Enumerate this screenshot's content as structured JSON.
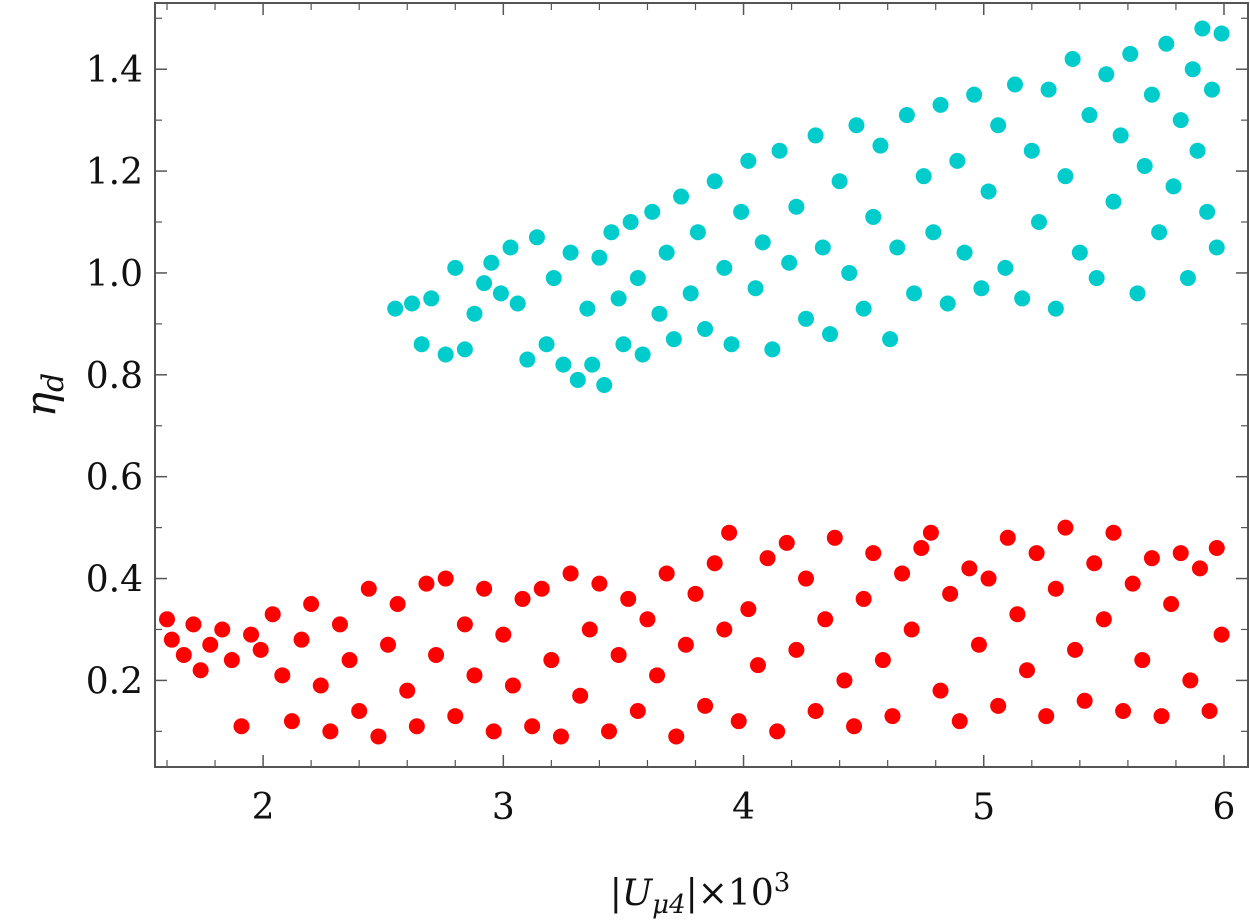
{
  "chart_data": {
    "type": "scatter",
    "title": "",
    "xlabel_parts": {
      "open": "|U",
      "sub": "μ4",
      "mid": "|×10",
      "sup": "3"
    },
    "ylabel_parts": {
      "main": "η",
      "sub": "d"
    },
    "xlim": [
      1.55,
      6.1
    ],
    "ylim": [
      0.03,
      1.53
    ],
    "xticks": [
      2,
      3,
      4,
      5,
      6
    ],
    "yticks": [
      0.2,
      0.4,
      0.6,
      0.8,
      1.0,
      1.2,
      1.4
    ],
    "xtick_labels": [
      "2",
      "3",
      "4",
      "5",
      "6"
    ],
    "ytick_labels": [
      "0.2",
      "0.4",
      "0.6",
      "0.8",
      "1.0",
      "1.2",
      "1.4"
    ],
    "grid": false,
    "colors": {
      "cyan": "#00cccc",
      "red": "#ff0000"
    },
    "series": [
      {
        "color": "#00cccc",
        "points": [
          [
            2.55,
            0.93
          ],
          [
            2.62,
            0.94
          ],
          [
            2.66,
            0.86
          ],
          [
            2.7,
            0.95
          ],
          [
            2.76,
            0.84
          ],
          [
            2.8,
            1.01
          ],
          [
            2.84,
            0.85
          ],
          [
            2.88,
            0.92
          ],
          [
            2.92,
            0.98
          ],
          [
            2.95,
            1.02
          ],
          [
            2.99,
            0.96
          ],
          [
            3.03,
            1.05
          ],
          [
            3.06,
            0.94
          ],
          [
            3.1,
            0.83
          ],
          [
            3.14,
            1.07
          ],
          [
            3.18,
            0.86
          ],
          [
            3.21,
            0.99
          ],
          [
            3.25,
            0.82
          ],
          [
            3.28,
            1.04
          ],
          [
            3.31,
            0.79
          ],
          [
            3.35,
            0.93
          ],
          [
            3.37,
            0.82
          ],
          [
            3.4,
            1.03
          ],
          [
            3.42,
            0.78
          ],
          [
            3.45,
            1.08
          ],
          [
            3.48,
            0.95
          ],
          [
            3.5,
            0.86
          ],
          [
            3.53,
            1.1
          ],
          [
            3.56,
            0.99
          ],
          [
            3.58,
            0.84
          ],
          [
            3.62,
            1.12
          ],
          [
            3.65,
            0.92
          ],
          [
            3.68,
            1.04
          ],
          [
            3.71,
            0.87
          ],
          [
            3.74,
            1.15
          ],
          [
            3.78,
            0.96
          ],
          [
            3.81,
            1.08
          ],
          [
            3.84,
            0.89
          ],
          [
            3.88,
            1.18
          ],
          [
            3.92,
            1.01
          ],
          [
            3.95,
            0.86
          ],
          [
            3.99,
            1.12
          ],
          [
            4.02,
            1.22
          ],
          [
            4.05,
            0.97
          ],
          [
            4.08,
            1.06
          ],
          [
            4.12,
            0.85
          ],
          [
            4.15,
            1.24
          ],
          [
            4.19,
            1.02
          ],
          [
            4.22,
            1.13
          ],
          [
            4.26,
            0.91
          ],
          [
            4.3,
            1.27
          ],
          [
            4.33,
            1.05
          ],
          [
            4.36,
            0.88
          ],
          [
            4.4,
            1.18
          ],
          [
            4.44,
            1.0
          ],
          [
            4.47,
            1.29
          ],
          [
            4.5,
            0.93
          ],
          [
            4.54,
            1.11
          ],
          [
            4.57,
            1.25
          ],
          [
            4.61,
            0.87
          ],
          [
            4.64,
            1.05
          ],
          [
            4.68,
            1.31
          ],
          [
            4.71,
            0.96
          ],
          [
            4.75,
            1.19
          ],
          [
            4.79,
            1.08
          ],
          [
            4.82,
            1.33
          ],
          [
            4.85,
            0.94
          ],
          [
            4.89,
            1.22
          ],
          [
            4.92,
            1.04
          ],
          [
            4.96,
            1.35
          ],
          [
            4.99,
            0.97
          ],
          [
            5.02,
            1.16
          ],
          [
            5.06,
            1.29
          ],
          [
            5.09,
            1.01
          ],
          [
            5.13,
            1.37
          ],
          [
            5.16,
            0.95
          ],
          [
            5.2,
            1.24
          ],
          [
            5.23,
            1.1
          ],
          [
            5.27,
            1.36
          ],
          [
            5.3,
            0.93
          ],
          [
            5.34,
            1.19
          ],
          [
            5.37,
            1.42
          ],
          [
            5.4,
            1.04
          ],
          [
            5.44,
            1.31
          ],
          [
            5.47,
            0.99
          ],
          [
            5.51,
            1.39
          ],
          [
            5.54,
            1.14
          ],
          [
            5.57,
            1.27
          ],
          [
            5.61,
            1.43
          ],
          [
            5.64,
            0.96
          ],
          [
            5.67,
            1.21
          ],
          [
            5.7,
            1.35
          ],
          [
            5.73,
            1.08
          ],
          [
            5.76,
            1.45
          ],
          [
            5.79,
            1.17
          ],
          [
            5.82,
            1.3
          ],
          [
            5.85,
            0.99
          ],
          [
            5.87,
            1.4
          ],
          [
            5.89,
            1.24
          ],
          [
            5.91,
            1.48
          ],
          [
            5.93,
            1.12
          ],
          [
            5.95,
            1.36
          ],
          [
            5.97,
            1.05
          ],
          [
            5.99,
            1.47
          ]
        ]
      },
      {
        "color": "#ff0000",
        "points": [
          [
            1.6,
            0.32
          ],
          [
            1.62,
            0.28
          ],
          [
            1.67,
            0.25
          ],
          [
            1.71,
            0.31
          ],
          [
            1.74,
            0.22
          ],
          [
            1.78,
            0.27
          ],
          [
            1.83,
            0.3
          ],
          [
            1.87,
            0.24
          ],
          [
            1.91,
            0.11
          ],
          [
            1.95,
            0.29
          ],
          [
            1.99,
            0.26
          ],
          [
            2.04,
            0.33
          ],
          [
            2.08,
            0.21
          ],
          [
            2.12,
            0.12
          ],
          [
            2.16,
            0.28
          ],
          [
            2.2,
            0.35
          ],
          [
            2.24,
            0.19
          ],
          [
            2.28,
            0.1
          ],
          [
            2.32,
            0.31
          ],
          [
            2.36,
            0.24
          ],
          [
            2.4,
            0.14
          ],
          [
            2.44,
            0.38
          ],
          [
            2.48,
            0.09
          ],
          [
            2.52,
            0.27
          ],
          [
            2.56,
            0.35
          ],
          [
            2.6,
            0.18
          ],
          [
            2.64,
            0.11
          ],
          [
            2.68,
            0.39
          ],
          [
            2.72,
            0.25
          ],
          [
            2.76,
            0.4
          ],
          [
            2.8,
            0.13
          ],
          [
            2.84,
            0.31
          ],
          [
            2.88,
            0.21
          ],
          [
            2.92,
            0.38
          ],
          [
            2.96,
            0.1
          ],
          [
            3.0,
            0.29
          ],
          [
            3.04,
            0.19
          ],
          [
            3.08,
            0.36
          ],
          [
            3.12,
            0.11
          ],
          [
            3.16,
            0.38
          ],
          [
            3.2,
            0.24
          ],
          [
            3.24,
            0.09
          ],
          [
            3.28,
            0.41
          ],
          [
            3.32,
            0.17
          ],
          [
            3.36,
            0.3
          ],
          [
            3.4,
            0.39
          ],
          [
            3.44,
            0.1
          ],
          [
            3.48,
            0.25
          ],
          [
            3.52,
            0.36
          ],
          [
            3.56,
            0.14
          ],
          [
            3.6,
            0.32
          ],
          [
            3.64,
            0.21
          ],
          [
            3.68,
            0.41
          ],
          [
            3.72,
            0.09
          ],
          [
            3.76,
            0.27
          ],
          [
            3.8,
            0.37
          ],
          [
            3.84,
            0.15
          ],
          [
            3.88,
            0.43
          ],
          [
            3.92,
            0.3
          ],
          [
            3.94,
            0.49
          ],
          [
            3.98,
            0.12
          ],
          [
            4.02,
            0.34
          ],
          [
            4.06,
            0.23
          ],
          [
            4.1,
            0.44
          ],
          [
            4.14,
            0.1
          ],
          [
            4.18,
            0.47
          ],
          [
            4.22,
            0.26
          ],
          [
            4.26,
            0.4
          ],
          [
            4.3,
            0.14
          ],
          [
            4.34,
            0.32
          ],
          [
            4.38,
            0.48
          ],
          [
            4.42,
            0.2
          ],
          [
            4.46,
            0.11
          ],
          [
            4.5,
            0.36
          ],
          [
            4.54,
            0.45
          ],
          [
            4.58,
            0.24
          ],
          [
            4.62,
            0.13
          ],
          [
            4.66,
            0.41
          ],
          [
            4.7,
            0.3
          ],
          [
            4.74,
            0.46
          ],
          [
            4.78,
            0.49
          ],
          [
            4.82,
            0.18
          ],
          [
            4.86,
            0.37
          ],
          [
            4.9,
            0.12
          ],
          [
            4.94,
            0.42
          ],
          [
            4.98,
            0.27
          ],
          [
            5.02,
            0.4
          ],
          [
            5.06,
            0.15
          ],
          [
            5.1,
            0.48
          ],
          [
            5.14,
            0.33
          ],
          [
            5.18,
            0.22
          ],
          [
            5.22,
            0.45
          ],
          [
            5.26,
            0.13
          ],
          [
            5.3,
            0.38
          ],
          [
            5.34,
            0.5
          ],
          [
            5.38,
            0.26
          ],
          [
            5.42,
            0.16
          ],
          [
            5.46,
            0.43
          ],
          [
            5.5,
            0.32
          ],
          [
            5.54,
            0.49
          ],
          [
            5.58,
            0.14
          ],
          [
            5.62,
            0.39
          ],
          [
            5.66,
            0.24
          ],
          [
            5.7,
            0.44
          ],
          [
            5.74,
            0.13
          ],
          [
            5.78,
            0.35
          ],
          [
            5.82,
            0.45
          ],
          [
            5.86,
            0.2
          ],
          [
            5.9,
            0.42
          ],
          [
            5.94,
            0.14
          ],
          [
            5.97,
            0.46
          ],
          [
            5.99,
            0.29
          ]
        ]
      }
    ]
  }
}
